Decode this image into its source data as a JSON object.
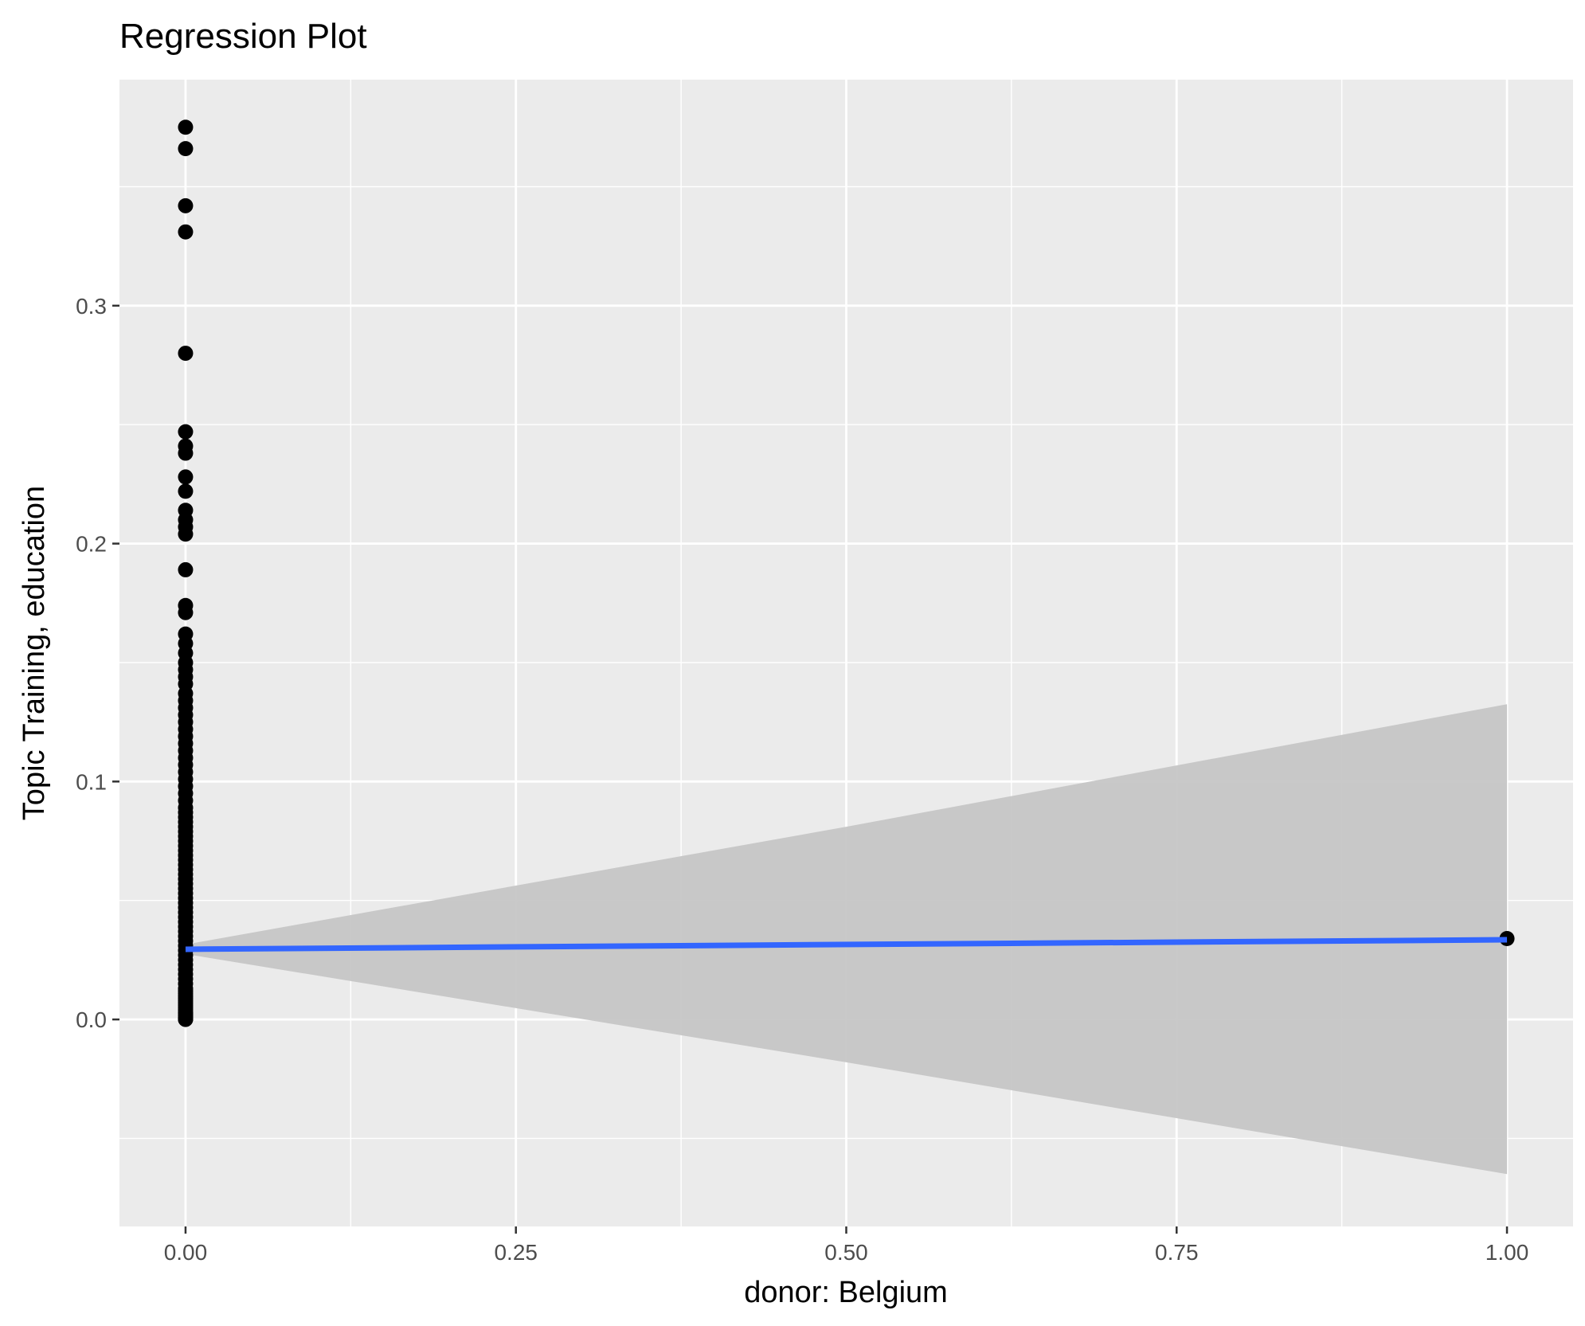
{
  "chart_data": {
    "type": "scatter",
    "title": "Regression Plot",
    "xlabel": "donor: Belgium",
    "ylabel": "Topic Training, education",
    "xlim": [
      -0.05,
      1.05
    ],
    "ylim": [
      -0.087,
      0.395
    ],
    "x_ticks": [
      0.0,
      0.25,
      0.5,
      0.75,
      1.0
    ],
    "x_tick_labels": [
      "0.00",
      "0.25",
      "0.50",
      "0.75",
      "1.00"
    ],
    "y_ticks": [
      0.0,
      0.1,
      0.2,
      0.3
    ],
    "y_tick_labels": [
      "0.0",
      "0.1",
      "0.2",
      "0.3"
    ],
    "grid": true,
    "legend": "none",
    "colors": {
      "panel_background": "#ebebeb",
      "grid": "#ffffff",
      "points": "#000000",
      "regression_line": "#3366ff",
      "confidence_band": "#c6c6c6"
    },
    "series": [
      {
        "type": "scatter",
        "x": [
          0,
          0,
          0,
          0,
          0,
          0,
          0,
          0,
          0,
          0,
          0,
          0,
          0,
          0,
          0,
          0,
          0,
          0,
          0,
          0,
          0,
          0,
          0,
          0,
          0,
          0,
          0,
          0,
          0,
          0,
          0,
          0,
          0,
          0,
          0,
          0,
          0,
          0,
          0,
          0,
          0,
          0,
          0,
          0,
          0,
          0,
          0,
          0,
          0,
          0,
          0,
          0,
          0,
          0,
          0,
          0,
          0,
          0,
          0,
          0,
          0,
          0,
          0,
          0,
          0,
          0,
          0,
          0,
          0,
          0,
          0,
          0,
          0,
          0,
          0,
          0,
          0,
          0,
          0,
          0,
          0,
          0,
          0,
          0,
          0,
          0,
          0,
          0,
          0,
          0,
          0,
          0,
          0,
          0,
          0,
          0,
          0,
          0,
          0,
          0,
          1
        ],
        "y": [
          0.375,
          0.366,
          0.342,
          0.331,
          0.28,
          0.247,
          0.241,
          0.238,
          0.228,
          0.222,
          0.214,
          0.21,
          0.207,
          0.204,
          0.189,
          0.174,
          0.171,
          0.162,
          0.158,
          0.154,
          0.15,
          0.147,
          0.144,
          0.141,
          0.137,
          0.134,
          0.131,
          0.128,
          0.125,
          0.122,
          0.119,
          0.116,
          0.113,
          0.11,
          0.107,
          0.104,
          0.101,
          0.098,
          0.095,
          0.092,
          0.089,
          0.087,
          0.085,
          0.083,
          0.081,
          0.079,
          0.077,
          0.075,
          0.073,
          0.071,
          0.069,
          0.067,
          0.065,
          0.063,
          0.061,
          0.059,
          0.057,
          0.055,
          0.053,
          0.051,
          0.049,
          0.047,
          0.045,
          0.043,
          0.041,
          0.039,
          0.037,
          0.035,
          0.033,
          0.031,
          0.029,
          0.027,
          0.025,
          0.023,
          0.021,
          0.019,
          0.017,
          0.015,
          0.013,
          0.012,
          0.011,
          0.01,
          0.009,
          0.008,
          0.007,
          0.006,
          0.005,
          0.004,
          0.003,
          0.0025,
          0.002,
          0.0015,
          0.001,
          0.0008,
          0.0006,
          0.0004,
          0.0003,
          0.0002,
          0.0001,
          0.0,
          0.034
        ]
      },
      {
        "type": "line",
        "x": [
          0,
          1
        ],
        "y": [
          0.0295,
          0.0335
        ]
      },
      {
        "type": "area",
        "x": [
          0,
          0.5,
          1
        ],
        "y_upper": [
          0.0315,
          0.081,
          0.1325
        ],
        "y_lower": [
          0.0275,
          -0.018,
          -0.065
        ]
      }
    ]
  }
}
